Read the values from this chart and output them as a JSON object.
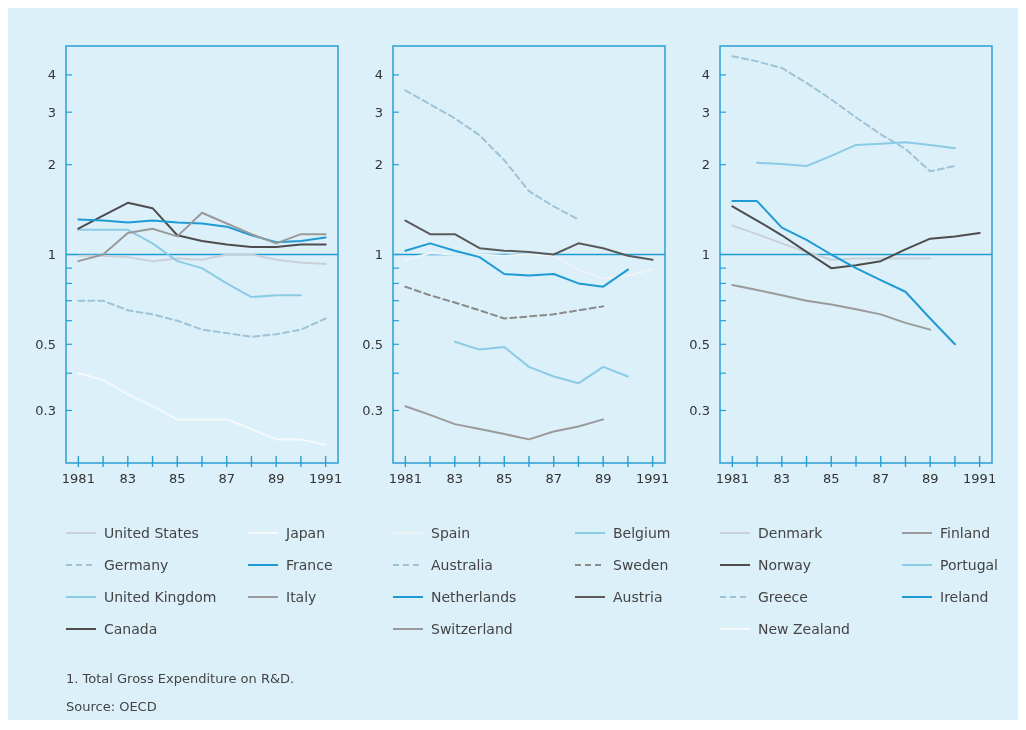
{
  "chart_data": [
    {
      "type": "line",
      "log": "y",
      "legend": "bottom",
      "x": [
        1981,
        1982,
        1983,
        1984,
        1985,
        1986,
        1987,
        1988,
        1989,
        1990,
        1991
      ],
      "xlim": [
        1980.5,
        1991.5
      ],
      "xticks": [
        {
          "value": 1981,
          "label": "1981"
        },
        {
          "value": 1982,
          "label": null
        },
        {
          "value": 1983,
          "label": "83"
        },
        {
          "value": 1984,
          "label": null
        },
        {
          "value": 1985,
          "label": "85"
        },
        {
          "value": 1986,
          "label": null
        },
        {
          "value": 1987,
          "label": "87"
        },
        {
          "value": 1988,
          "label": null
        },
        {
          "value": 1989,
          "label": "89"
        },
        {
          "value": 1990,
          "label": null
        },
        {
          "value": 1991,
          "label": "1991"
        }
      ],
      "ylim": [
        0.2,
        5
      ],
      "yticks": [
        0.3,
        {
          "value": 0.4,
          "label": null
        },
        0.5,
        {
          "value": 0.6,
          "label": null
        },
        {
          "value": 0.7,
          "label": null
        },
        {
          "value": 0.8,
          "label": null
        },
        {
          "value": 0.9,
          "label": null
        },
        1,
        2,
        3,
        4
      ],
      "ref_lines": [
        {
          "axis": "y",
          "value": 1,
          "color": "#1e9bd4"
        }
      ],
      "annotations": [
        "1. Total Gross Expenditure on R&D.",
        "Source: OECD"
      ],
      "series": [
        {
          "name": "United States",
          "color": "#c9d1d7",
          "values": [
            0.99,
            0.99,
            0.98,
            0.95,
            0.97,
            0.96,
            1.0,
            1.0,
            0.96,
            0.94,
            0.93
          ]
        },
        {
          "name": "Germany",
          "color": "#9ec3d6",
          "line_style": "dashed",
          "values": [
            0.7,
            0.7,
            0.65,
            0.63,
            0.6,
            0.56,
            0.545,
            0.53,
            0.54,
            0.56,
            0.61
          ]
        },
        {
          "name": "United Kingdom",
          "color": "#8ccbe6",
          "values": [
            1.21,
            1.21,
            1.21,
            1.09,
            0.95,
            0.9,
            0.8,
            0.72,
            0.73,
            0.73,
            null
          ]
        },
        {
          "name": "Canada",
          "color": "#4d4d4d",
          "values": [
            1.22,
            1.35,
            1.49,
            1.43,
            1.16,
            1.11,
            1.08,
            1.06,
            1.06,
            1.08,
            1.08
          ]
        },
        {
          "name": "Japan",
          "color": "#f5f9fb",
          "values": [
            0.4,
            0.38,
            0.34,
            0.31,
            0.28,
            0.28,
            0.28,
            0.26,
            0.24,
            0.24,
            0.23
          ]
        },
        {
          "name": "France",
          "color": "#1e9bd4",
          "values": [
            1.31,
            1.3,
            1.28,
            1.3,
            1.28,
            1.27,
            1.24,
            1.16,
            1.1,
            1.11,
            1.14
          ]
        },
        {
          "name": "Italy",
          "color": "#9a9a9a",
          "values": [
            0.95,
            1.0,
            1.18,
            1.22,
            1.15,
            1.38,
            1.27,
            1.17,
            1.09,
            1.17,
            1.17
          ]
        }
      ]
    },
    {
      "type": "line",
      "log": "y",
      "legend": "bottom",
      "x": [
        1981,
        1982,
        1983,
        1984,
        1985,
        1986,
        1987,
        1988,
        1989,
        1990,
        1991
      ],
      "xlim": [
        1980.5,
        1991.5
      ],
      "xticks": [
        {
          "value": 1981,
          "label": "1981"
        },
        {
          "value": 1982,
          "label": null
        },
        {
          "value": 1983,
          "label": "83"
        },
        {
          "value": 1984,
          "label": null
        },
        {
          "value": 1985,
          "label": "85"
        },
        {
          "value": 1986,
          "label": null
        },
        {
          "value": 1987,
          "label": "87"
        },
        {
          "value": 1988,
          "label": null
        },
        {
          "value": 1989,
          "label": "89"
        },
        {
          "value": 1990,
          "label": null
        },
        {
          "value": 1991,
          "label": "1991"
        }
      ],
      "ylim": [
        0.2,
        5
      ],
      "yticks": [
        0.3,
        {
          "value": 0.4,
          "label": null
        },
        0.5,
        {
          "value": 0.6,
          "label": null
        },
        {
          "value": 0.7,
          "label": null
        },
        {
          "value": 0.8,
          "label": null
        },
        {
          "value": 0.9,
          "label": null
        },
        1,
        2,
        3,
        4
      ],
      "ref_lines": [
        {
          "axis": "y",
          "value": 1,
          "color": "#1e9bd4"
        }
      ],
      "series": [
        {
          "name": "Spain",
          "color": "#eef3f6",
          "values": [
            0.96,
            1.01,
            1.0,
            1.0,
            0.99,
            1.0,
            0.99,
            0.89,
            0.83,
            0.85,
            0.89
          ]
        },
        {
          "name": "Australia",
          "color": "#9ec3d6",
          "line_style": "dashed",
          "values": [
            3.55,
            3.19,
            2.86,
            2.51,
            2.07,
            1.63,
            1.45,
            1.31,
            null,
            null,
            null
          ]
        },
        {
          "name": "Netherlands",
          "color": "#1e9bd4",
          "values": [
            1.03,
            1.09,
            1.03,
            0.98,
            0.86,
            0.85,
            0.86,
            0.8,
            0.78,
            0.89,
            null
          ]
        },
        {
          "name": "Switzerland",
          "color": "#9a9a9a",
          "values": [
            0.31,
            0.29,
            0.27,
            0.26,
            0.25,
            0.24,
            0.255,
            0.265,
            0.28,
            null,
            null
          ]
        },
        {
          "name": "Belgium",
          "color": "#8ccbe6",
          "values": [
            null,
            null,
            0.51,
            0.48,
            0.49,
            0.42,
            0.39,
            0.37,
            0.42,
            0.39,
            null
          ]
        },
        {
          "name": "Sweden",
          "color": "#8a8a8a",
          "line_style": "dashed",
          "values": [
            0.78,
            0.73,
            0.69,
            0.65,
            0.61,
            0.62,
            0.63,
            0.65,
            0.67,
            null,
            null
          ]
        },
        {
          "name": "Austria",
          "color": "#5a5a5a",
          "values": [
            1.3,
            1.17,
            1.17,
            1.05,
            1.03,
            1.02,
            1.0,
            1.09,
            1.05,
            0.99,
            0.96
          ]
        }
      ]
    },
    {
      "type": "line",
      "log": "y",
      "legend": "bottom",
      "x": [
        1981,
        1982,
        1983,
        1984,
        1985,
        1986,
        1987,
        1988,
        1989,
        1990,
        1991
      ],
      "xlim": [
        1980.5,
        1991.5
      ],
      "xticks": [
        {
          "value": 1981,
          "label": "1981"
        },
        {
          "value": 1982,
          "label": null
        },
        {
          "value": 1983,
          "label": "83"
        },
        {
          "value": 1984,
          "label": null
        },
        {
          "value": 1985,
          "label": "85"
        },
        {
          "value": 1986,
          "label": null
        },
        {
          "value": 1987,
          "label": "87"
        },
        {
          "value": 1988,
          "label": null
        },
        {
          "value": 1989,
          "label": "89"
        },
        {
          "value": 1990,
          "label": null
        },
        {
          "value": 1991,
          "label": "1991"
        }
      ],
      "ylim": [
        0.2,
        5
      ],
      "yticks": [
        0.3,
        {
          "value": 0.4,
          "label": null
        },
        0.5,
        {
          "value": 0.6,
          "label": null
        },
        {
          "value": 0.7,
          "label": null
        },
        {
          "value": 0.8,
          "label": null
        },
        {
          "value": 0.9,
          "label": null
        },
        1,
        2,
        3,
        4
      ],
      "ref_lines": [
        {
          "axis": "y",
          "value": 1,
          "color": "#1e9bd4"
        }
      ],
      "series": [
        {
          "name": "Denmark",
          "color": "#c9d1d7",
          "values": [
            1.25,
            1.17,
            1.09,
            1.02,
            0.96,
            0.97,
            0.97,
            0.97,
            0.97,
            null,
            null
          ]
        },
        {
          "name": "Norway",
          "color": "#4d4d4d",
          "values": [
            1.45,
            1.3,
            1.16,
            1.02,
            0.9,
            0.92,
            0.95,
            1.04,
            1.13,
            1.15,
            1.18
          ]
        },
        {
          "name": "Greece",
          "color": "#9ec3d6",
          "line_style": "dashed",
          "values": [
            4.62,
            4.44,
            4.22,
            3.76,
            3.31,
            2.88,
            2.53,
            2.26,
            1.9,
            1.98,
            null
          ]
        },
        {
          "name": "New Zealand",
          "color": "#f5f9fb",
          "values": [
            null,
            null,
            null,
            null,
            null,
            null,
            null,
            null,
            null,
            null,
            null
          ]
        },
        {
          "name": "Finland",
          "color": "#9a9a9a",
          "values": [
            0.79,
            0.76,
            0.73,
            0.7,
            0.68,
            0.655,
            0.63,
            0.59,
            0.56,
            null,
            null
          ]
        },
        {
          "name": "Portugal",
          "color": "#8ccbe6",
          "values": [
            null,
            2.03,
            2.01,
            1.98,
            2.14,
            2.33,
            2.35,
            2.38,
            2.33,
            2.27,
            null
          ]
        },
        {
          "name": "Ireland",
          "color": "#1e9bd4",
          "values": [
            1.51,
            1.51,
            1.23,
            1.12,
            1.0,
            0.9,
            0.82,
            0.75,
            0.61,
            0.5,
            null
          ]
        }
      ]
    }
  ]
}
